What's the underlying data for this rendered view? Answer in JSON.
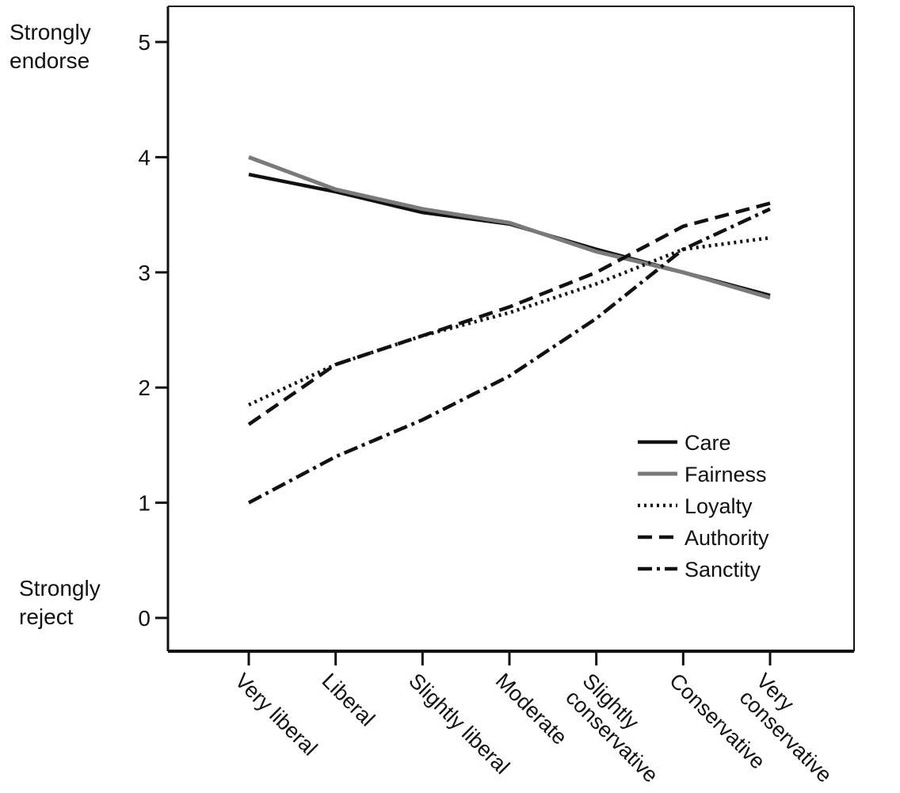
{
  "chart_data": {
    "type": "line",
    "categories": [
      "Very liberal",
      "Liberal",
      "Slightly liberal",
      "Moderate",
      "Slightly conservative",
      "Conservative",
      "Very conservative"
    ],
    "category_lines": [
      [
        "Very liberal"
      ],
      [
        "Liberal"
      ],
      [
        "Slightly liberal"
      ],
      [
        "Moderate"
      ],
      [
        "Slightly",
        "conservative"
      ],
      [
        "Conservative"
      ],
      [
        "Very",
        "conservative"
      ]
    ],
    "ylim": [
      0,
      5
    ],
    "yticks": [
      "0",
      "1",
      "2",
      "3",
      "4",
      "5"
    ],
    "y_top_label": [
      "Strongly",
      "endorse"
    ],
    "y_bottom_label": [
      "Strongly",
      "reject"
    ],
    "legend_position": "bottom-right",
    "grid": false,
    "series": [
      {
        "name": "Care",
        "values": [
          3.85,
          3.7,
          3.52,
          3.42,
          3.2,
          3.0,
          2.8
        ],
        "color": "#111111",
        "dash": "solid"
      },
      {
        "name": "Fairness",
        "values": [
          4.0,
          3.72,
          3.55,
          3.43,
          3.18,
          3.0,
          2.78
        ],
        "color": "#7a7a7a",
        "dash": "solid"
      },
      {
        "name": "Loyalty",
        "values": [
          1.85,
          2.2,
          2.45,
          2.65,
          2.9,
          3.2,
          3.3
        ],
        "color": "#111111",
        "dash": "dotted"
      },
      {
        "name": "Authority",
        "values": [
          1.68,
          2.2,
          2.45,
          2.7,
          3.0,
          3.4,
          3.6
        ],
        "color": "#111111",
        "dash": "dashed"
      },
      {
        "name": "Sanctity",
        "values": [
          1.0,
          1.4,
          1.72,
          2.1,
          2.6,
          3.2,
          3.55
        ],
        "color": "#111111",
        "dash": "dashdot"
      }
    ]
  }
}
